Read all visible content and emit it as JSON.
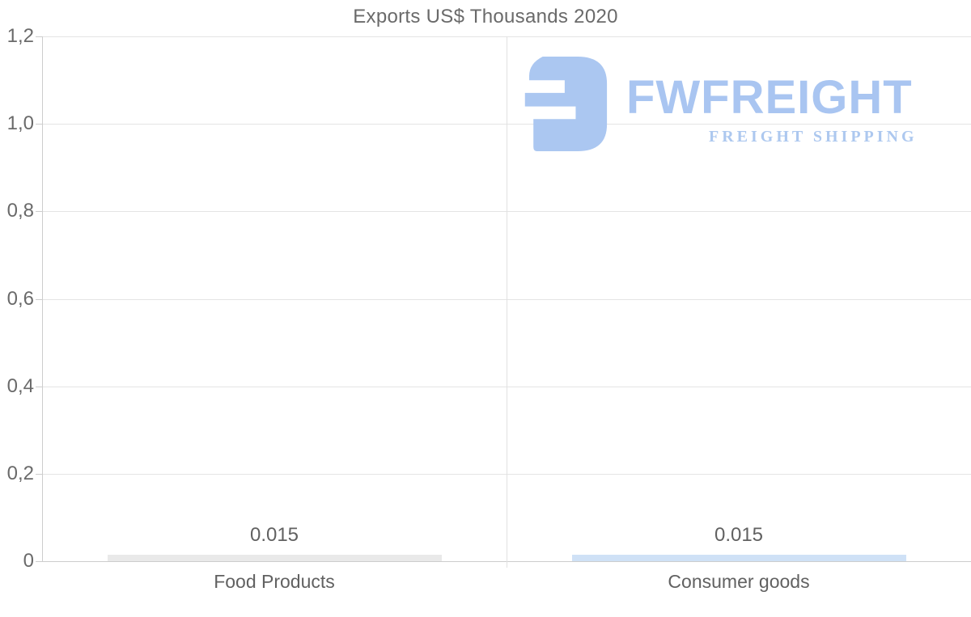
{
  "chart_data": {
    "type": "bar",
    "title": "Exports US$ Thousands 2020",
    "categories": [
      "Food Products",
      "Consumer goods"
    ],
    "values": [
      0.015,
      0.015
    ],
    "value_labels": [
      "0.015",
      "0.015"
    ],
    "bar_colors": [
      "#e9e9e9",
      "#cfe1f6"
    ],
    "xlabel": "",
    "ylabel": "",
    "ylim": [
      0,
      1.2
    ],
    "yticks": [
      {
        "value": 0,
        "label": "0"
      },
      {
        "value": 0.2,
        "label": "0,2"
      },
      {
        "value": 0.4,
        "label": "0,4"
      },
      {
        "value": 0.6,
        "label": "0,6"
      },
      {
        "value": 0.8,
        "label": "0,8"
      },
      {
        "value": 1.0,
        "label": "1,0"
      },
      {
        "value": 1.2,
        "label": "1,2"
      }
    ],
    "grid": "horizontal lines at every y tick; one vertical divider between the two categories",
    "legend": "none"
  },
  "watermark": {
    "brand": "FWFREIGHT",
    "tagline": "FREIGHT SHIPPING",
    "logo_icon": "reversed-E-block-icon",
    "color": "#a9c5f1"
  },
  "colors": {
    "background": "#ffffff",
    "title_text": "#6a6a6a",
    "axis_text": "#6a6a6a",
    "label_text": "#616161",
    "gridline": "#e4e4e4",
    "axis_line": "#cdcdcd",
    "bar_food_products": "#e9e9e9",
    "bar_consumer_goods": "#cfe1f6",
    "logo_blue": "#a9c5f1"
  }
}
